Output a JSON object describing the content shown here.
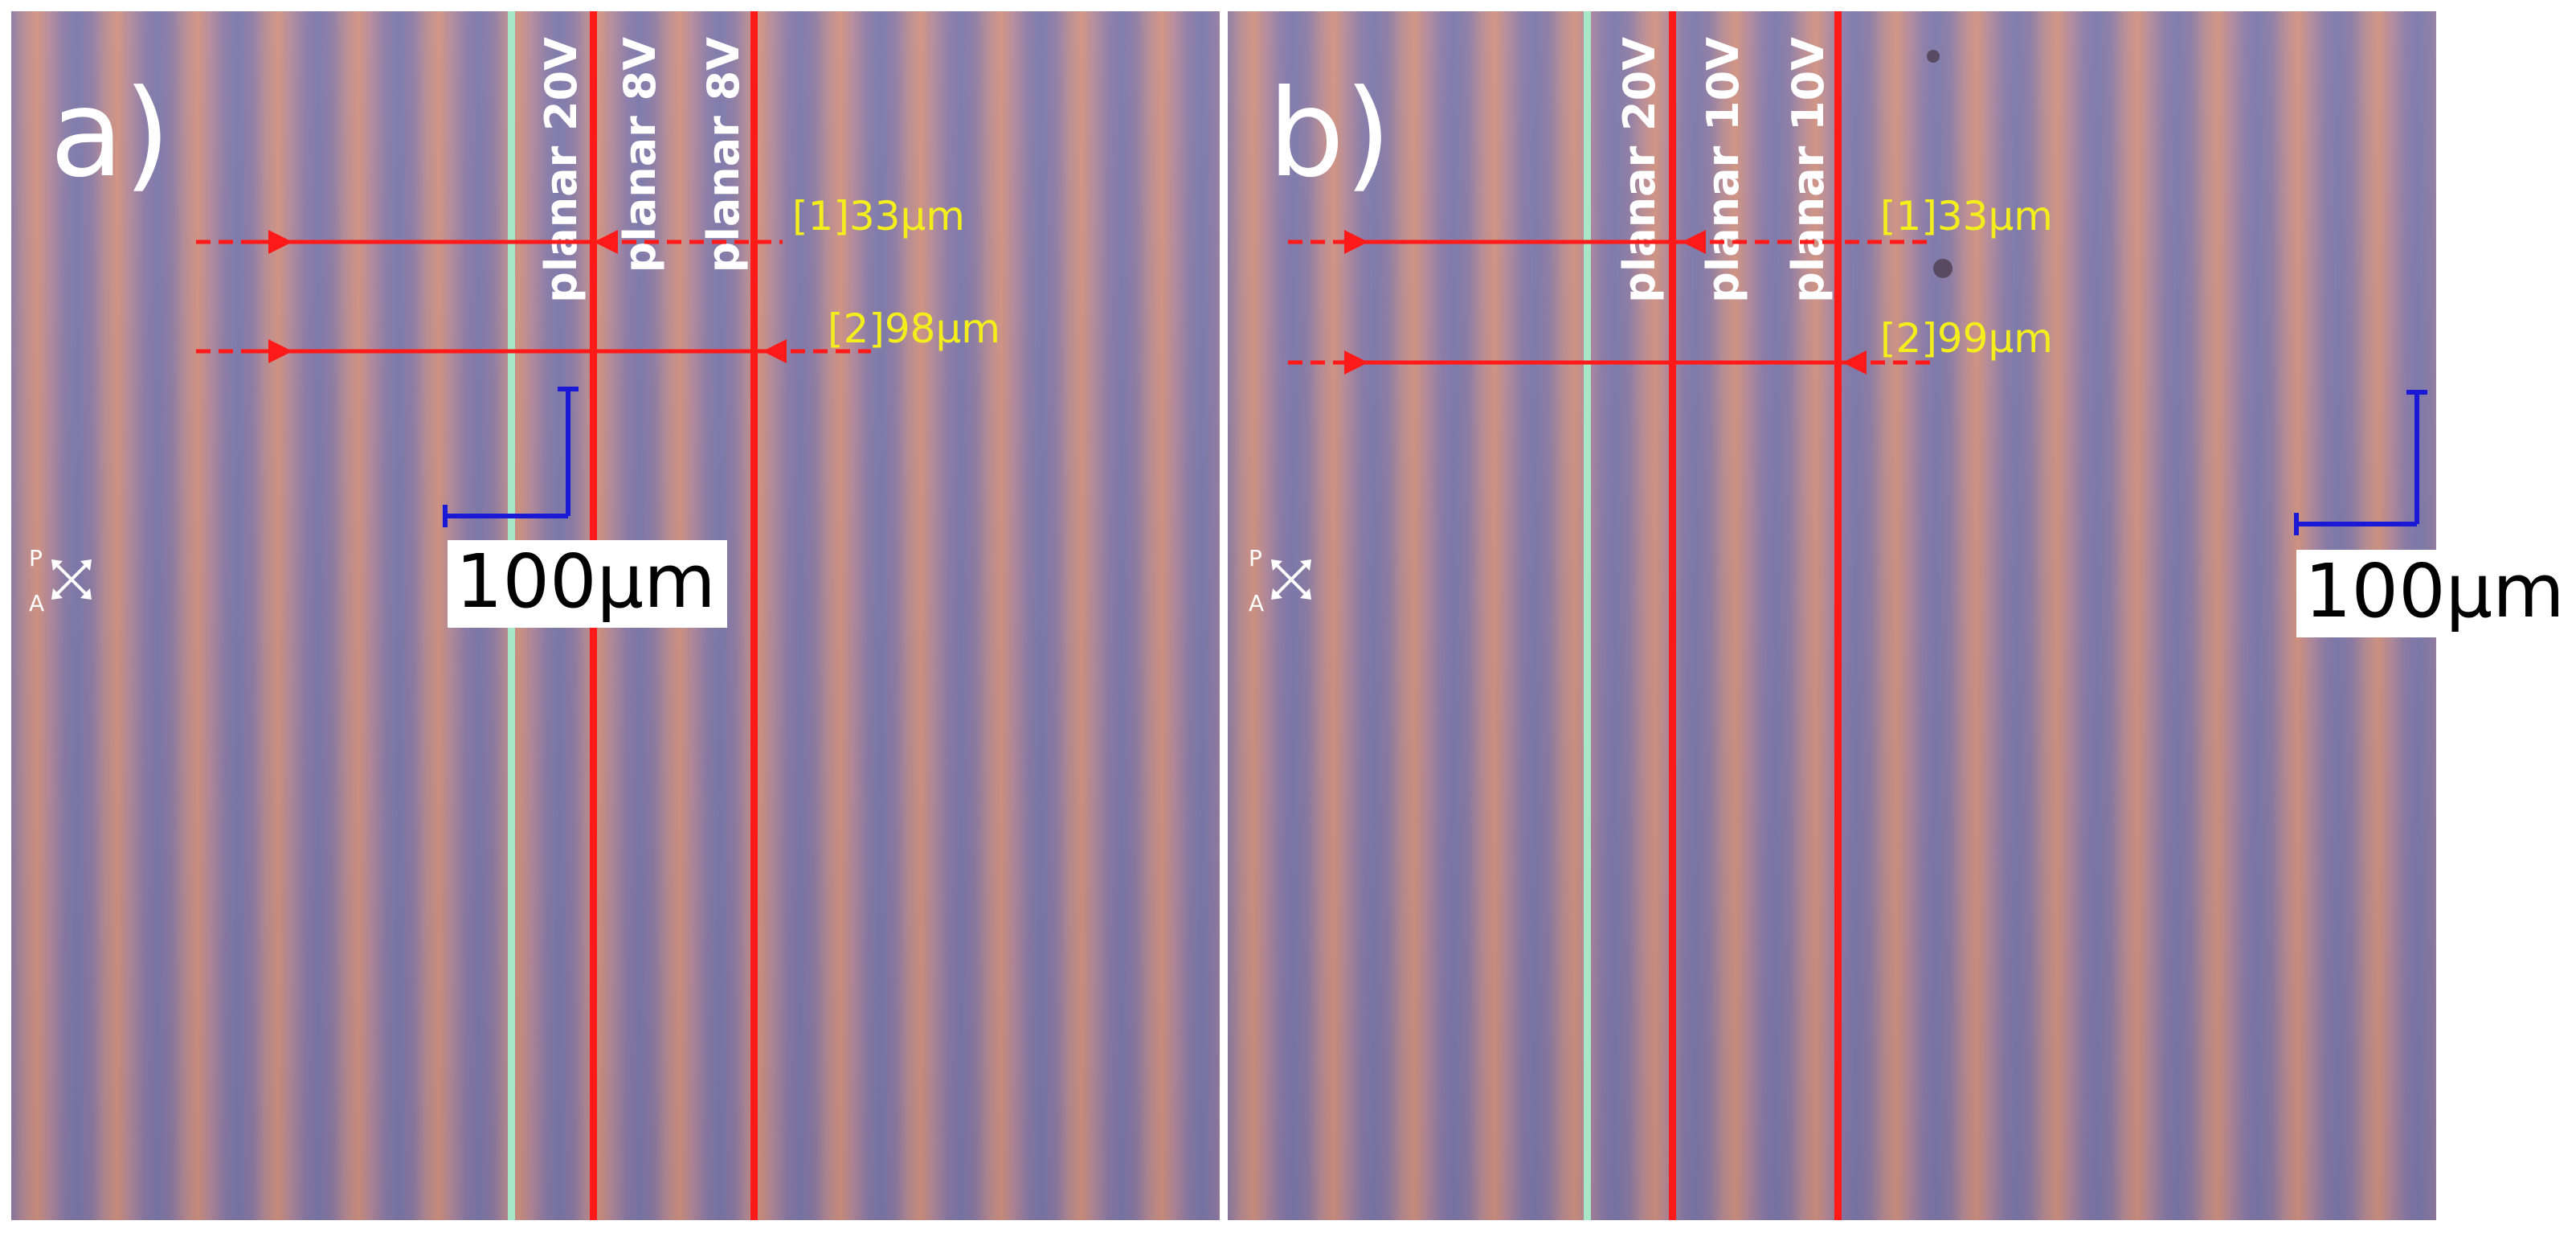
{
  "colors": {
    "reference_line": "#a8e6c8",
    "measure_line": "#ff1a1a",
    "measure_text": "#f4ef1c",
    "scale_bar": "#1a1ad6"
  },
  "panels": [
    {
      "label": "a)",
      "lines": [
        {
          "state": "planar",
          "voltage": "20V"
        },
        {
          "state": "planar",
          "voltage": "8V"
        },
        {
          "state": "planar",
          "voltage": "8V"
        }
      ],
      "measurements": [
        {
          "label": "[1]33μm"
        },
        {
          "label": "[2]98μm"
        }
      ],
      "scale_label": "100μm",
      "polarizer": {
        "p": "P",
        "a": "A",
        "icon": "crossed-polarizers-icon"
      }
    },
    {
      "label": "b)",
      "lines": [
        {
          "state": "planar",
          "voltage": "20V"
        },
        {
          "state": "planar",
          "voltage": "10V"
        },
        {
          "state": "planar",
          "voltage": "10V"
        }
      ],
      "measurements": [
        {
          "label": "[1]33μm"
        },
        {
          "label": "[2]99μm"
        }
      ],
      "scale_label": "100μm",
      "polarizer": {
        "p": "P",
        "a": "A",
        "icon": "crossed-polarizers-icon"
      }
    }
  ]
}
